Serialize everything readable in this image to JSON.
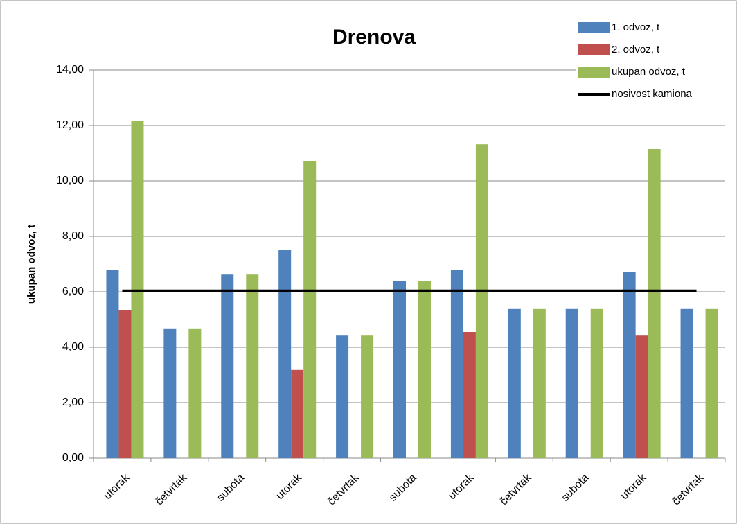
{
  "chart_data": {
    "type": "bar",
    "title": "Drenova",
    "y_label": "ukupan odvoz, t",
    "categories": [
      "utorak",
      "četvrtak",
      "subota",
      "utorak",
      "četvrtak",
      "subota",
      "utorak",
      "četvrtak",
      "subota",
      "utorak",
      "četvrtak"
    ],
    "series": [
      {
        "name": "1. odvoz, t",
        "color": "#4f81bd",
        "values": [
          6.8,
          4.68,
          6.62,
          7.5,
          4.42,
          6.38,
          6.8,
          5.38,
          5.38,
          6.7,
          5.38
        ]
      },
      {
        "name": "2. odvoz, t",
        "color": "#c0504d",
        "values": [
          5.35,
          null,
          null,
          3.18,
          null,
          null,
          4.55,
          null,
          null,
          4.42,
          null
        ]
      },
      {
        "name": "ukupan odvoz, t",
        "color": "#9bbb59",
        "values": [
          12.15,
          4.68,
          6.62,
          10.7,
          4.42,
          6.38,
          11.32,
          5.38,
          5.38,
          11.15,
          5.38
        ]
      },
      {
        "name": "nosivost kamiona",
        "color": "#000000",
        "type": "line",
        "values": [
          6.03,
          6.03,
          6.03,
          6.03,
          6.03,
          6.03,
          6.03,
          6.03,
          6.03,
          6.03,
          6.03
        ]
      }
    ],
    "ylim": [
      0,
      14
    ],
    "yticks": [
      {
        "value": 0,
        "label": "0,00"
      },
      {
        "value": 2,
        "label": "2,00"
      },
      {
        "value": 4,
        "label": "4,00"
      },
      {
        "value": 6,
        "label": "6,00"
      },
      {
        "value": 8,
        "label": "8,00"
      },
      {
        "value": 10,
        "label": "10,00"
      },
      {
        "value": 12,
        "label": "12,00"
      },
      {
        "value": 14,
        "label": "14,00"
      }
    ],
    "grid": true,
    "legend": "upper right"
  }
}
